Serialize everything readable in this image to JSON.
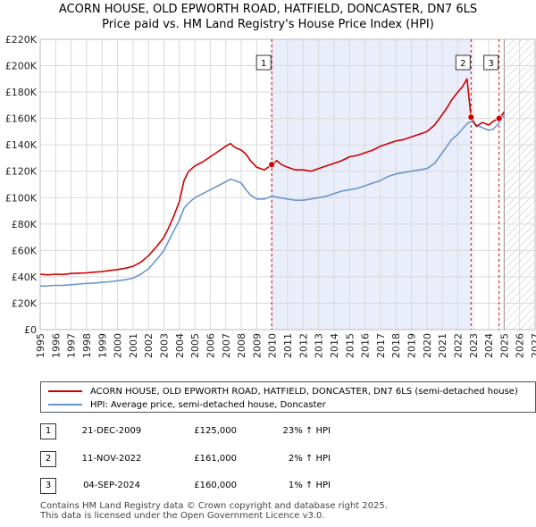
{
  "title_line1": "ACORN HOUSE, OLD EPWORTH ROAD, HATFIELD, DONCASTER, DN7 6LS",
  "title_line2": "Price paid vs. HM Land Registry's House Price Index (HPI)",
  "chart_data": {
    "type": "line",
    "xlim": [
      1995,
      2027
    ],
    "ylim": [
      0,
      220000
    ],
    "x_ticks": [
      1995,
      1996,
      1997,
      1998,
      1999,
      2000,
      2001,
      2002,
      2003,
      2004,
      2005,
      2006,
      2007,
      2008,
      2009,
      2010,
      2011,
      2012,
      2013,
      2014,
      2015,
      2016,
      2017,
      2018,
      2019,
      2020,
      2021,
      2022,
      2023,
      2024,
      2025,
      2026,
      2027
    ],
    "y_ticks": [
      0,
      20000,
      40000,
      60000,
      80000,
      100000,
      120000,
      140000,
      160000,
      180000,
      200000,
      220000
    ],
    "y_tick_labels": [
      "£0",
      "£20K",
      "£40K",
      "£60K",
      "£80K",
      "£100K",
      "£120K",
      "£140K",
      "£160K",
      "£180K",
      "£200K",
      "£220K"
    ],
    "grid": true,
    "shaded_span": [
      2009.97,
      2022.86
    ],
    "future_hatch_from": 2025.0,
    "series": [
      {
        "name": "ACORN HOUSE, OLD EPWORTH ROAD, HATFIELD, DONCASTER, DN7 6LS (semi-detached house)",
        "color": "#cc0000",
        "x": [
          1995,
          1995.5,
          1996,
          1996.5,
          1997,
          1997.5,
          1998,
          1998.5,
          1999,
          1999.5,
          2000,
          2000.5,
          2001,
          2001.5,
          2002,
          2002.3,
          2002.6,
          2003,
          2003.3,
          2003.6,
          2004,
          2004.3,
          2004.6,
          2005,
          2005.5,
          2006,
          2006.5,
          2007,
          2007.3,
          2007.6,
          2008,
          2008.3,
          2008.6,
          2009,
          2009.5,
          2009.97,
          2010.3,
          2010.6,
          2011,
          2011.5,
          2012,
          2012.5,
          2013,
          2013.5,
          2014,
          2014.5,
          2015,
          2015.5,
          2016,
          2016.5,
          2017,
          2017.5,
          2018,
          2018.5,
          2019,
          2019.5,
          2020,
          2020.5,
          2021,
          2021.3,
          2021.6,
          2022,
          2022.3,
          2022.6,
          2022.86,
          2023.2,
          2023.6,
          2024,
          2024.3,
          2024.67,
          2025.0
        ],
        "values": [
          42000,
          41500,
          42000,
          41800,
          42500,
          42800,
          43000,
          43500,
          44000,
          44800,
          45500,
          46500,
          48000,
          51000,
          56000,
          60000,
          64000,
          70000,
          77000,
          85000,
          97000,
          113000,
          120000,
          124000,
          127000,
          131000,
          135000,
          139000,
          141000,
          138000,
          136000,
          133000,
          128000,
          123000,
          121000,
          125000,
          128000,
          125000,
          123000,
          121000,
          121000,
          120000,
          122000,
          124000,
          126000,
          128000,
          131000,
          132000,
          134000,
          136000,
          139000,
          141000,
          143000,
          144000,
          146000,
          148000,
          150000,
          155000,
          163000,
          168000,
          174000,
          180000,
          184000,
          190000,
          161000,
          154000,
          157000,
          155000,
          158000,
          160000,
          165000
        ]
      },
      {
        "name": "HPI: Average price, semi-detached house, Doncaster",
        "color": "#6a96cc",
        "x": [
          1995,
          1995.5,
          1996,
          1996.5,
          1997,
          1997.5,
          1998,
          1998.5,
          1999,
          1999.5,
          2000,
          2000.5,
          2001,
          2001.5,
          2002,
          2002.3,
          2002.6,
          2003,
          2003.3,
          2003.6,
          2004,
          2004.3,
          2004.6,
          2005,
          2005.5,
          2006,
          2006.5,
          2007,
          2007.3,
          2007.6,
          2008,
          2008.3,
          2008.6,
          2009,
          2009.5,
          2010,
          2010.5,
          2011,
          2011.5,
          2012,
          2012.5,
          2013,
          2013.5,
          2014,
          2014.5,
          2015,
          2015.5,
          2016,
          2016.5,
          2017,
          2017.5,
          2018,
          2018.5,
          2019,
          2019.5,
          2020,
          2020.5,
          2021,
          2021.3,
          2021.6,
          2022,
          2022.3,
          2022.6,
          2022.9,
          2023.2,
          2023.6,
          2024,
          2024.3,
          2024.7,
          2025.0
        ],
        "values": [
          33000,
          33200,
          33500,
          33600,
          34000,
          34500,
          35000,
          35300,
          35800,
          36300,
          37000,
          37800,
          39000,
          42000,
          46000,
          50000,
          54000,
          60000,
          67000,
          74000,
          83000,
          92000,
          96000,
          100000,
          103000,
          106000,
          109000,
          112000,
          114000,
          113000,
          111000,
          106000,
          102000,
          99000,
          99000,
          101000,
          100000,
          99000,
          98000,
          98000,
          99000,
          100000,
          101000,
          103000,
          105000,
          106000,
          107000,
          109000,
          111000,
          113000,
          116000,
          118000,
          119000,
          120000,
          121000,
          122000,
          126000,
          134000,
          139000,
          144000,
          148000,
          152000,
          156000,
          158000,
          155000,
          153000,
          151000,
          152000,
          157000,
          163000
        ]
      }
    ],
    "markers": [
      {
        "label": "1",
        "x": 2009.97,
        "y": 125000
      },
      {
        "label": "2",
        "x": 2022.86,
        "y": 161000
      },
      {
        "label": "3",
        "x": 2024.67,
        "y": 160000
      }
    ]
  },
  "legend": {
    "red_label": "ACORN HOUSE, OLD EPWORTH ROAD, HATFIELD, DONCASTER, DN7 6LS (semi-detached house)",
    "blue_label": "HPI: Average price, semi-detached house, Doncaster",
    "red_color": "#cc0000",
    "blue_color": "#6a96cc"
  },
  "transactions": [
    {
      "num": "1",
      "date": "21-DEC-2009",
      "price": "£125,000",
      "hpi": "23% ↑ HPI"
    },
    {
      "num": "2",
      "date": "11-NOV-2022",
      "price": "£161,000",
      "hpi": "2% ↑ HPI"
    },
    {
      "num": "3",
      "date": "04-SEP-2024",
      "price": "£160,000",
      "hpi": "1% ↑ HPI"
    }
  ],
  "footer_line1": "Contains HM Land Registry data © Crown copyright and database right 2025.",
  "footer_line2": "This data is licensed under the Open Government Licence v3.0."
}
